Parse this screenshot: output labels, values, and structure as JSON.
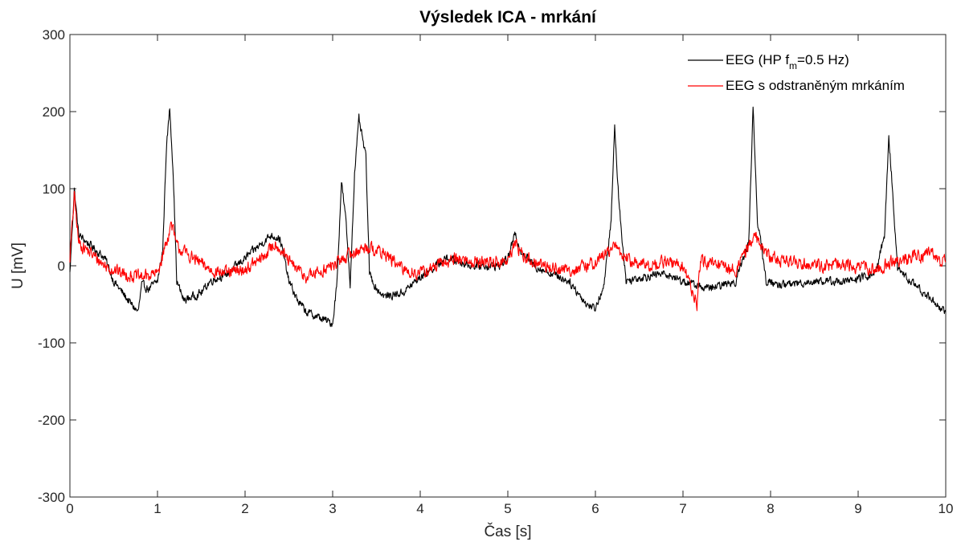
{
  "chart_data": {
    "type": "line",
    "title": "Výsledek ICA - mrkání",
    "xlabel": "Čas [s]",
    "ylabel": "U [mV]",
    "xlim": [
      0,
      10
    ],
    "ylim": [
      -300,
      300
    ],
    "xticks": [
      0,
      1,
      2,
      3,
      4,
      5,
      6,
      7,
      8,
      9,
      10
    ],
    "yticks": [
      -300,
      -200,
      -100,
      0,
      100,
      200,
      300
    ],
    "grid": false,
    "legend_position": "top-right",
    "legend": {
      "entry1_prefix": "EEG (HP f",
      "entry1_sub": "m",
      "entry1_suffix": "=0.5 Hz)",
      "entry2": "EEG s odstraněným mrkáním"
    },
    "series": [
      {
        "name": "EEG (HP fm=0.5 Hz)",
        "color": "#000000",
        "x": [
          0,
          0.05,
          0.1,
          0.2,
          0.3,
          0.4,
          0.5,
          0.6,
          0.7,
          0.78,
          0.82,
          0.9,
          1.0,
          1.06,
          1.1,
          1.14,
          1.18,
          1.22,
          1.3,
          1.4,
          1.5,
          1.6,
          1.8,
          2.0,
          2.2,
          2.3,
          2.4,
          2.5,
          2.6,
          2.7,
          2.8,
          2.9,
          3.0,
          3.05,
          3.1,
          3.15,
          3.2,
          3.25,
          3.3,
          3.38,
          3.42,
          3.5,
          3.6,
          3.8,
          4.0,
          4.3,
          4.6,
          4.9,
          5.0,
          5.08,
          5.15,
          5.3,
          5.5,
          5.7,
          5.9,
          6.0,
          6.1,
          6.18,
          6.22,
          6.27,
          6.35,
          6.5,
          6.8,
          7.0,
          7.3,
          7.6,
          7.75,
          7.8,
          7.85,
          7.95,
          8.1,
          8.5,
          8.9,
          9.2,
          9.3,
          9.35,
          9.38,
          9.45,
          9.6,
          9.8,
          10.0
        ],
        "y": [
          -10,
          100,
          40,
          30,
          20,
          10,
          -20,
          -35,
          -50,
          -60,
          -25,
          -30,
          -20,
          20,
          150,
          205,
          120,
          -20,
          -45,
          -40,
          -35,
          -20,
          -10,
          10,
          30,
          40,
          35,
          -20,
          -45,
          -60,
          -65,
          -70,
          -75,
          -20,
          110,
          60,
          -25,
          120,
          190,
          140,
          -10,
          -30,
          -40,
          -35,
          -15,
          10,
          0,
          0,
          10,
          40,
          20,
          0,
          -10,
          -20,
          -50,
          -55,
          -25,
          60,
          180,
          80,
          -20,
          -15,
          -10,
          -20,
          -30,
          -20,
          30,
          205,
          60,
          -20,
          -25,
          -20,
          -20,
          -10,
          40,
          165,
          120,
          -5,
          -20,
          -40,
          -60
        ]
      },
      {
        "name": "EEG s odstraněným mrkáním",
        "color": "#ff0000",
        "x": [
          0,
          0.05,
          0.1,
          0.2,
          0.4,
          0.6,
          0.8,
          1.0,
          1.1,
          1.16,
          1.22,
          1.4,
          1.6,
          1.8,
          2.0,
          2.2,
          2.35,
          2.5,
          2.7,
          2.9,
          3.0,
          3.2,
          3.4,
          3.6,
          3.8,
          4.0,
          4.2,
          4.4,
          4.6,
          4.8,
          5.0,
          5.08,
          5.2,
          5.4,
          5.6,
          5.8,
          6.0,
          6.22,
          6.4,
          6.6,
          6.8,
          7.0,
          7.16,
          7.2,
          7.4,
          7.6,
          7.82,
          8.0,
          8.3,
          8.6,
          8.9,
          9.2,
          9.4,
          9.6,
          9.8,
          10.0
        ],
        "y": [
          10,
          90,
          30,
          20,
          0,
          -10,
          -15,
          -10,
          30,
          55,
          25,
          10,
          -5,
          -10,
          -5,
          10,
          30,
          5,
          -15,
          -5,
          0,
          15,
          25,
          15,
          -5,
          -10,
          0,
          10,
          5,
          5,
          5,
          30,
          10,
          0,
          -5,
          -5,
          5,
          25,
          5,
          0,
          5,
          0,
          -50,
          5,
          0,
          -5,
          40,
          10,
          5,
          0,
          0,
          -5,
          5,
          10,
          15,
          5
        ]
      }
    ]
  }
}
